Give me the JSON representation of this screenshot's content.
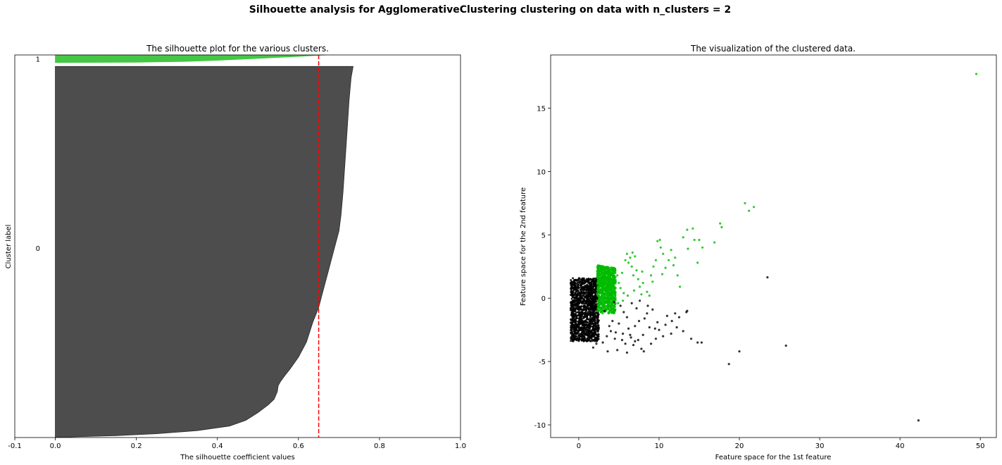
{
  "suptitle": "Silhouette analysis for AgglomerativeClustering clustering on data with n_clusters = 2",
  "chart_data": [
    {
      "type": "area",
      "title": "The silhouette plot for the various clusters.",
      "xlabel": "The silhouette coefficient values",
      "ylabel": "Cluster label",
      "xlim": [
        -0.1,
        1.0
      ],
      "ylim": [
        0,
        1000
      ],
      "xticks": [
        "-0.1",
        "0.0",
        "0.2",
        "0.4",
        "0.6",
        "0.8",
        "1.0"
      ],
      "xtick_values": [
        -0.1,
        0.0,
        0.2,
        0.4,
        0.6,
        0.8,
        1.0
      ],
      "cluster_labels": [
        "0",
        "1"
      ],
      "cluster_label_y": [
        495,
        990
      ],
      "average_silhouette": 0.65,
      "average_line_color": "#ff0000",
      "clusters": [
        {
          "label": "0",
          "color": "#4d4d4d",
          "y_range": [
            0,
            970
          ],
          "profile": [
            [
              0.735,
              970
            ],
            [
              0.73,
              940
            ],
            [
              0.725,
              880
            ],
            [
              0.72,
              800
            ],
            [
              0.715,
              720
            ],
            [
              0.71,
              640
            ],
            [
              0.705,
              580
            ],
            [
              0.7,
              540
            ],
            [
              0.69,
              500
            ],
            [
              0.675,
              440
            ],
            [
              0.66,
              380
            ],
            [
              0.65,
              340
            ],
            [
              0.635,
              300
            ],
            [
              0.62,
              250
            ],
            [
              0.6,
              210
            ],
            [
              0.58,
              180
            ],
            [
              0.565,
              160
            ],
            [
              0.555,
              145
            ],
            [
              0.55,
              135
            ],
            [
              0.548,
              120
            ],
            [
              0.54,
              100
            ],
            [
              0.525,
              85
            ],
            [
              0.5,
              65
            ],
            [
              0.47,
              45
            ],
            [
              0.43,
              30
            ],
            [
              0.35,
              18
            ],
            [
              0.25,
              10
            ],
            [
              0.15,
              5
            ],
            [
              0.05,
              2
            ],
            [
              0.0,
              0
            ]
          ]
        },
        {
          "label": "1",
          "color": "#44c744",
          "y_range": [
            980,
            1000
          ],
          "profile": [
            [
              0.67,
              1000
            ],
            [
              0.63,
              998
            ],
            [
              0.58,
              995
            ],
            [
              0.52,
              992
            ],
            [
              0.46,
              989
            ],
            [
              0.4,
              986
            ],
            [
              0.32,
              983
            ],
            [
              0.2,
              981
            ],
            [
              0.0,
              980
            ]
          ]
        }
      ]
    },
    {
      "type": "scatter",
      "title": "The visualization of the clustered data.",
      "xlabel": "Feature space for the 1st feature",
      "ylabel": "Feature space for the 2nd feature",
      "xlim": [
        -3.5,
        52.0
      ],
      "ylim": [
        -11.0,
        19.2
      ],
      "xticks": [
        "0",
        "10",
        "20",
        "30",
        "40",
        "50"
      ],
      "xtick_values": [
        0,
        10,
        20,
        30,
        40,
        50
      ],
      "yticks": [
        "-10",
        "-5",
        "0",
        "5",
        "10",
        "15"
      ],
      "ytick_values": [
        -10,
        -5,
        0,
        5,
        10,
        15
      ],
      "dense_regions": [
        {
          "cluster": "0",
          "color": "#000000",
          "x_range": [
            -1.0,
            2.5
          ],
          "y_range": [
            -3.4,
            1.6
          ]
        },
        {
          "cluster": "1",
          "color": "#00bb00",
          "x_range": [
            2.3,
            4.6
          ],
          "y_range": [
            -1.2,
            2.6
          ]
        }
      ],
      "series": [
        {
          "cluster": "0",
          "color": "#000000",
          "points": [
            [
              3.0,
              -3.5
            ],
            [
              3.5,
              -3.0
            ],
            [
              4.0,
              -2.6
            ],
            [
              4.5,
              -3.2
            ],
            [
              5.0,
              -2.0
            ],
            [
              5.5,
              -2.8
            ],
            [
              6.0,
              -1.5
            ],
            [
              6.5,
              -3.1
            ],
            [
              7.0,
              -2.2
            ],
            [
              7.5,
              -1.8
            ],
            [
              8.0,
              -2.9
            ],
            [
              8.5,
              -1.2
            ],
            [
              9.0,
              -3.6
            ],
            [
              9.5,
              -2.4
            ],
            [
              10.0,
              -2.5
            ],
            [
              10.5,
              -3.0
            ],
            [
              11.0,
              -1.4
            ],
            [
              11.5,
              -2.8
            ],
            [
              12.0,
              -1.2
            ],
            [
              12.5,
              -1.5
            ],
            [
              13.0,
              -2.6
            ],
            [
              13.5,
              -1.0
            ],
            [
              14.0,
              -3.2
            ],
            [
              3.2,
              -1.0
            ],
            [
              4.2,
              -1.8
            ],
            [
              5.2,
              -0.6
            ],
            [
              6.2,
              -2.4
            ],
            [
              7.2,
              -0.8
            ],
            [
              8.2,
              -1.6
            ],
            [
              9.2,
              -0.9
            ],
            [
              5.8,
              -3.6
            ],
            [
              6.8,
              -3.7
            ],
            [
              7.8,
              -4.0
            ],
            [
              8.1,
              -4.2
            ],
            [
              4.8,
              -4.1
            ],
            [
              3.6,
              -4.2
            ],
            [
              2.2,
              -3.6
            ],
            [
              1.8,
              -3.9
            ],
            [
              6.0,
              -4.3
            ],
            [
              7.4,
              -3.3
            ],
            [
              9.8,
              -1.9
            ],
            [
              10.8,
              -2.1
            ],
            [
              11.6,
              -1.8
            ],
            [
              12.2,
              -2.3
            ],
            [
              13.4,
              -1.1
            ],
            [
              14.8,
              -3.5
            ],
            [
              15.3,
              -3.5
            ],
            [
              20.0,
              -4.2
            ],
            [
              18.7,
              -5.2
            ],
            [
              23.5,
              1.65
            ],
            [
              25.8,
              -3.75
            ],
            [
              42.3,
              -9.65
            ],
            [
              4.4,
              -0.3
            ],
            [
              5.6,
              -1.1
            ],
            [
              6.6,
              -0.4
            ],
            [
              7.6,
              -0.2
            ],
            [
              8.6,
              -0.6
            ],
            [
              3.8,
              -2.2
            ],
            [
              4.6,
              -2.7
            ],
            [
              5.4,
              -3.3
            ],
            [
              6.4,
              -2.9
            ],
            [
              7.0,
              -3.4
            ],
            [
              8.8,
              -2.3
            ],
            [
              9.6,
              -3.2
            ]
          ]
        },
        {
          "cluster": "1",
          "color": "#00bb00",
          "points": [
            [
              4.8,
              1.8
            ],
            [
              5.0,
              1.2
            ],
            [
              5.2,
              0.8
            ],
            [
              5.4,
              2.0
            ],
            [
              5.6,
              0.4
            ],
            [
              5.8,
              3.0
            ],
            [
              6.0,
              3.5
            ],
            [
              6.2,
              2.8
            ],
            [
              6.4,
              3.2
            ],
            [
              6.6,
              2.5
            ],
            [
              6.8,
              1.8
            ],
            [
              7.0,
              3.3
            ],
            [
              7.2,
              2.2
            ],
            [
              7.4,
              1.5
            ],
            [
              7.6,
              0.9
            ],
            [
              5.5,
              -0.2
            ],
            [
              4.9,
              -0.4
            ],
            [
              6.1,
              0.2
            ],
            [
              6.9,
              0.6
            ],
            [
              7.8,
              0.3
            ],
            [
              8.0,
              1.2
            ],
            [
              8.5,
              0.5
            ],
            [
              9.0,
              1.8
            ],
            [
              9.3,
              2.5
            ],
            [
              9.6,
              3.0
            ],
            [
              9.8,
              4.5
            ],
            [
              10.1,
              4.6
            ],
            [
              10.2,
              4.0
            ],
            [
              10.5,
              3.5
            ],
            [
              10.8,
              2.4
            ],
            [
              11.2,
              3.0
            ],
            [
              11.5,
              3.8
            ],
            [
              12.0,
              3.2
            ],
            [
              12.3,
              1.8
            ],
            [
              12.6,
              0.9
            ],
            [
              13.0,
              4.8
            ],
            [
              13.5,
              5.4
            ],
            [
              13.6,
              3.9
            ],
            [
              14.2,
              5.5
            ],
            [
              14.4,
              4.6
            ],
            [
              14.8,
              2.8
            ],
            [
              15.0,
              4.6
            ],
            [
              15.4,
              4.0
            ],
            [
              16.9,
              4.4
            ],
            [
              17.6,
              5.9
            ],
            [
              17.8,
              5.6
            ],
            [
              20.7,
              7.5
            ],
            [
              21.2,
              6.9
            ],
            [
              21.8,
              7.2
            ],
            [
              49.5,
              17.7
            ],
            [
              8.8,
              0.2
            ],
            [
              9.2,
              1.3
            ],
            [
              10.4,
              1.9
            ],
            [
              11.8,
              2.6
            ],
            [
              7.9,
              2.1
            ],
            [
              6.7,
              3.6
            ]
          ]
        }
      ]
    }
  ]
}
